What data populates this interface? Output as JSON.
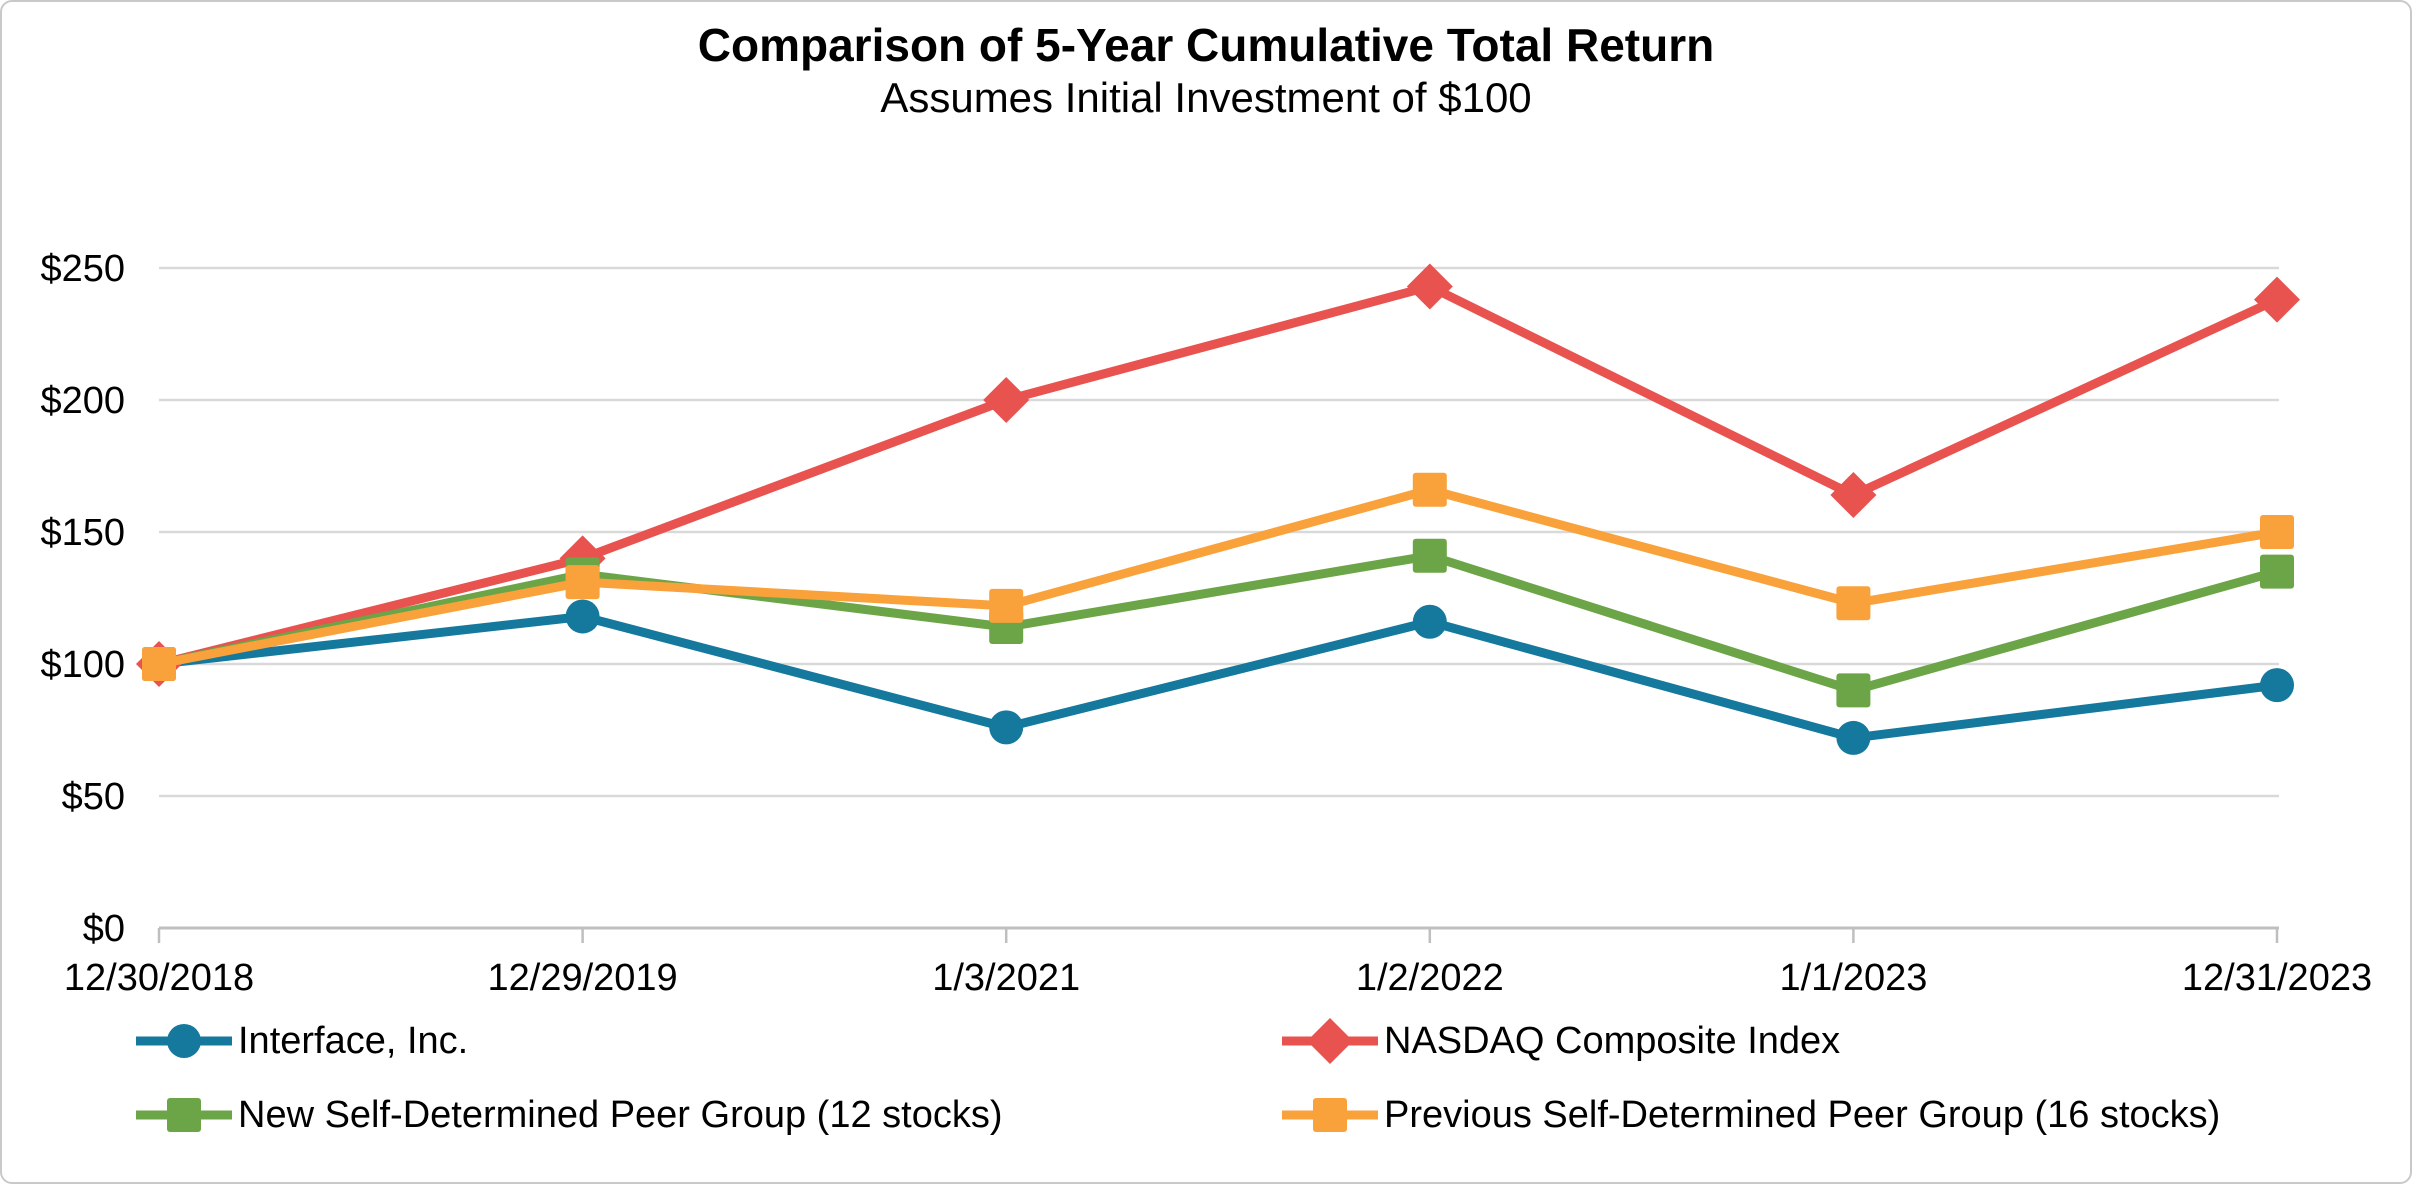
{
  "title": "Comparison of 5-Year Cumulative Total Return",
  "subtitle": "Assumes Initial Investment of $100",
  "chart_data": {
    "type": "line",
    "categories": [
      "12/30/2018",
      "12/29/2019",
      "1/3/2021",
      "1/2/2022",
      "1/1/2023",
      "12/31/2023"
    ],
    "series": [
      {
        "id": "interface-inc",
        "name": "Interface, Inc.",
        "marker": "circle",
        "color": "#15789D",
        "values": [
          100,
          118,
          76,
          116,
          72,
          92
        ]
      },
      {
        "id": "nasdaq-composite-index",
        "name": "NASDAQ Composite Index",
        "marker": "diamond",
        "color": "#E8534F",
        "values": [
          100,
          140,
          200,
          243,
          164,
          238
        ]
      },
      {
        "id": "new-peer-group",
        "name": "New Self-Determined Peer Group (12 stocks)",
        "marker": "square",
        "color": "#6BA547",
        "values": [
          100,
          134,
          114,
          141,
          90,
          135
        ]
      },
      {
        "id": "previous-peer-group",
        "name": "Previous Self-Determined Peer Group (16 stocks)",
        "marker": "square",
        "color": "#F9A23B",
        "values": [
          100,
          131,
          122,
          166,
          123,
          150
        ]
      }
    ],
    "y_ticks": [
      "$0",
      "$50",
      "$100",
      "$150",
      "$200",
      "$250"
    ],
    "y_tick_values": [
      0,
      50,
      100,
      150,
      200,
      250
    ],
    "ylim": [
      0,
      250
    ],
    "grid": true,
    "grid_color": "#D9D9D9",
    "axis_color": "#BFBFBF",
    "legend_position": "bottom"
  }
}
